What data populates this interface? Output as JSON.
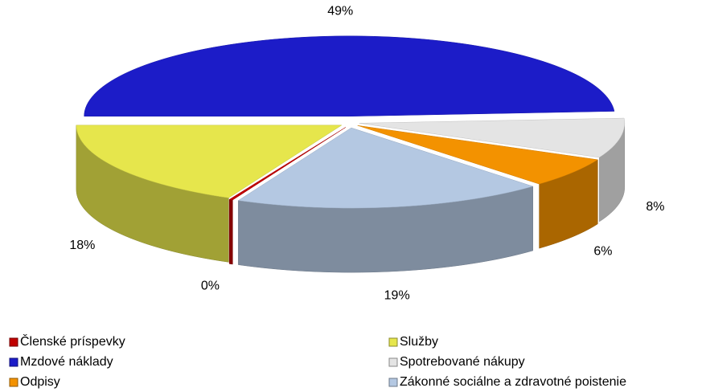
{
  "chart_data": {
    "type": "pie",
    "categories": [
      "Členské príspevky",
      "Služby",
      "Mzdové náklady",
      "Spotrebované nákupy",
      "Odpisy",
      "Zákonné sociálne a zdravotné poistenie"
    ],
    "values": [
      0,
      18,
      49,
      8,
      6,
      19
    ],
    "value_labels": [
      "0%",
      "18%",
      "49%",
      "8%",
      "6%",
      "19%"
    ],
    "colors": [
      "#c00000",
      "#e6e64c",
      "#1c1cc8",
      "#e4e4e4",
      "#f39200",
      "#b4c8e2"
    ],
    "legend": "bottom"
  }
}
